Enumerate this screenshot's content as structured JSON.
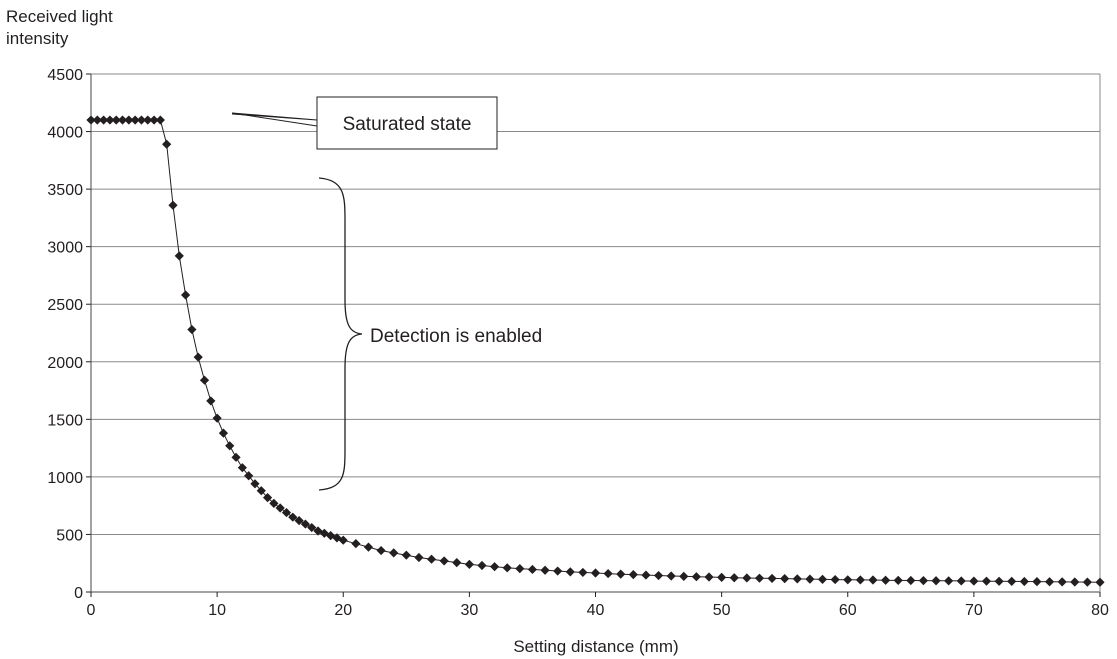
{
  "chart_data": {
    "type": "line",
    "title": "",
    "ylabel": [
      "Received light",
      "intensity"
    ],
    "xlabel": "Setting distance (mm)",
    "xlim": [
      0,
      80
    ],
    "ylim": [
      0,
      4500
    ],
    "x_ticks": [
      0,
      10,
      20,
      30,
      40,
      50,
      60,
      70,
      80
    ],
    "y_ticks": [
      0,
      500,
      1000,
      1500,
      2000,
      2500,
      3000,
      3500,
      4000,
      4500
    ],
    "grid": "horizontal",
    "marker": "diamond",
    "series_color": "#231f20",
    "series": [
      {
        "x": [
          0,
          0.5,
          1,
          1.5,
          2,
          2.5,
          3,
          3.5,
          4,
          4.5,
          5,
          5.5,
          6,
          6.5,
          7,
          7.5,
          8,
          8.5,
          9,
          9.5,
          10,
          10.5,
          11,
          11.5,
          12,
          12.5,
          13,
          13.5,
          14,
          14.5,
          15,
          15.5,
          16,
          16.5,
          17,
          17.5,
          18,
          18.5,
          19,
          19.5,
          20,
          21,
          22,
          23,
          24,
          25,
          26,
          27,
          28,
          29,
          30,
          31,
          32,
          33,
          34,
          35,
          36,
          37,
          38,
          39,
          40,
          41,
          42,
          43,
          44,
          45,
          46,
          47,
          48,
          49,
          50,
          51,
          52,
          53,
          54,
          55,
          56,
          57,
          58,
          59,
          60,
          61,
          62,
          63,
          64,
          65,
          66,
          67,
          68,
          69,
          70,
          71,
          72,
          73,
          74,
          75,
          76,
          77,
          78,
          79,
          80
        ],
        "values": [
          4100,
          4100,
          4100,
          4100,
          4100,
          4100,
          4100,
          4100,
          4100,
          4100,
          4100,
          4100,
          3890,
          3360,
          2920,
          2580,
          2280,
          2040,
          1840,
          1660,
          1510,
          1380,
          1270,
          1170,
          1080,
          1010,
          940,
          880,
          820,
          770,
          730,
          690,
          650,
          620,
          590,
          560,
          530,
          510,
          490,
          470,
          450,
          420,
          390,
          360,
          340,
          320,
          300,
          285,
          270,
          255,
          240,
          230,
          220,
          210,
          203,
          196,
          189,
          182,
          175,
          170,
          165,
          160,
          155,
          151,
          147,
          143,
          139,
          136,
          133,
          130,
          127,
          124,
          122,
          120,
          118,
          116,
          114,
          112,
          110,
          108,
          106,
          105,
          104,
          102,
          101,
          100,
          99,
          98,
          97,
          96,
          95,
          94,
          93,
          92,
          91,
          90,
          89,
          88,
          87,
          86,
          85
        ]
      }
    ],
    "annotations": [
      {
        "text": "Saturated state",
        "type": "callout-box"
      },
      {
        "text": "Detection is enabled",
        "type": "brace"
      }
    ]
  }
}
